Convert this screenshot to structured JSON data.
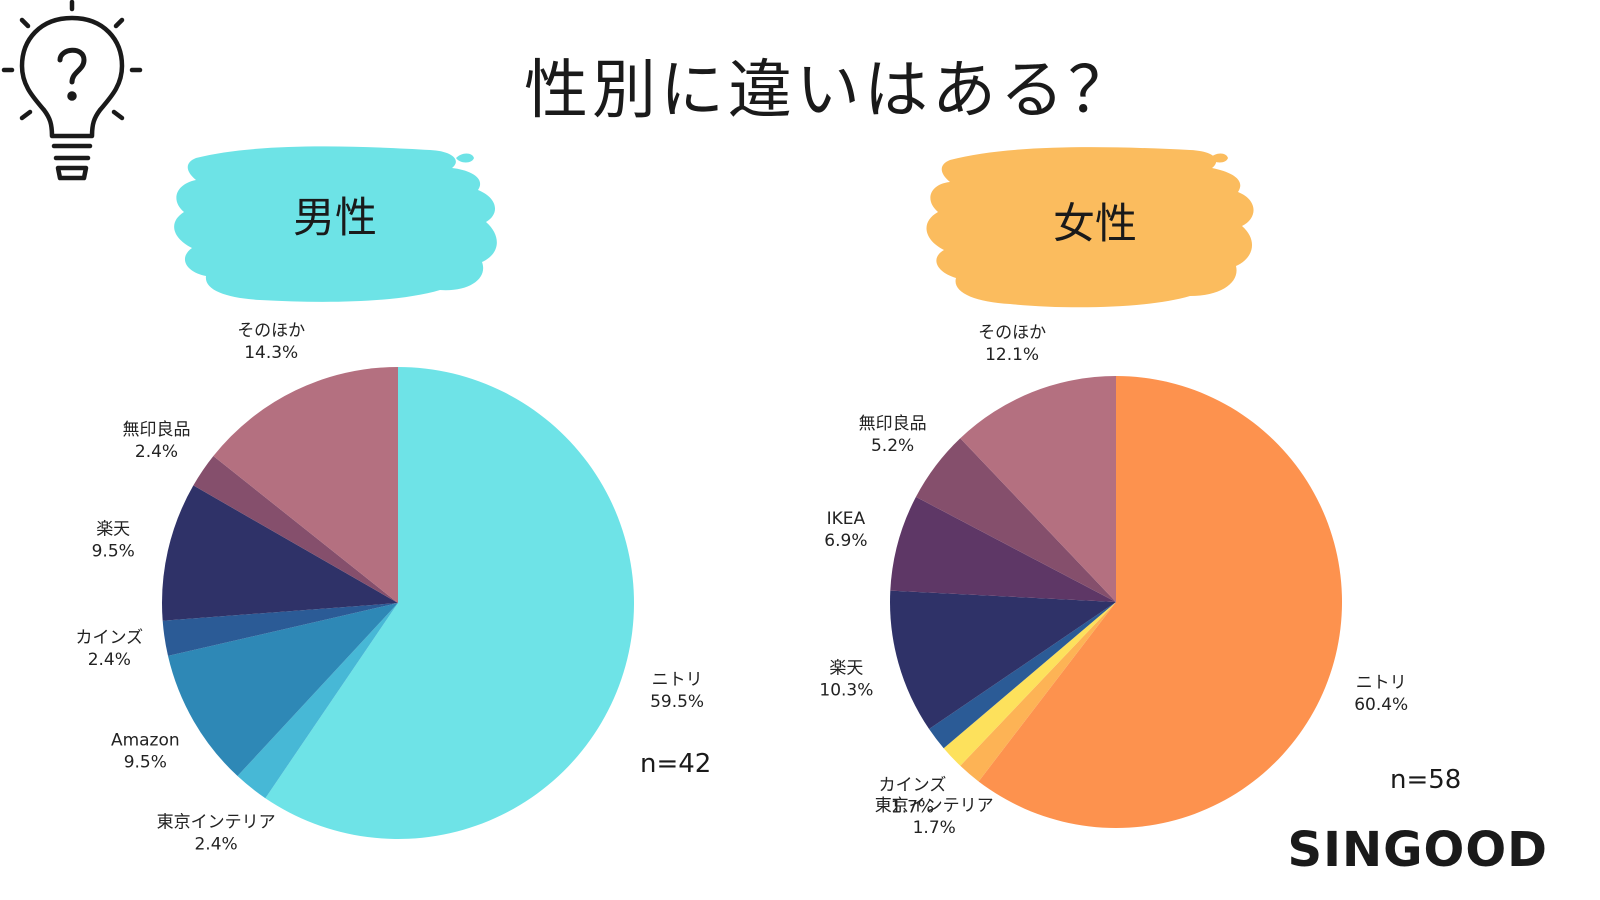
{
  "title": "性別に違いはある？",
  "brand": "SINGOOD",
  "icon": "lightbulb-question-icon",
  "colors": {
    "male_badge": "#6de3e6",
    "female_badge": "#fbbc5e",
    "text": "#1a1a1a"
  },
  "chart_data": [
    {
      "type": "pie",
      "title": "男性",
      "sample_size": "n=42",
      "slices": [
        {
          "label": "ニトリ",
          "value": 59.5,
          "value_text": "59.5%",
          "color": "#6ee3e7"
        },
        {
          "label": "東京インテリア",
          "value": 2.4,
          "value_text": "2.4%",
          "color": "#47b8d6"
        },
        {
          "label": "Amazon",
          "value": 9.5,
          "value_text": "9.5%",
          "color": "#2e88b6"
        },
        {
          "label": "カインズ",
          "value": 2.4,
          "value_text": "2.4%",
          "color": "#2b5b96"
        },
        {
          "label": "楽天",
          "value": 9.5,
          "value_text": "9.5%",
          "color": "#2f3268"
        },
        {
          "label": "無印良品",
          "value": 2.4,
          "value_text": "2.4%",
          "color": "#854f6c"
        },
        {
          "label": "そのほか",
          "value": 14.3,
          "value_text": "14.3%",
          "color": "#b47080"
        }
      ]
    },
    {
      "type": "pie",
      "title": "女性",
      "sample_size": "n=58",
      "slices": [
        {
          "label": "ニトリ",
          "value": 60.4,
          "value_text": "60.4%",
          "color": "#fd924e"
        },
        {
          "label": "東京インテリア",
          "value": 1.7,
          "value_text": "1.7%",
          "color": "#fdb355"
        },
        {
          "label": "カインズ",
          "value": 1.7,
          "value_text": "1.7%",
          "color": "#fde15c"
        },
        {
          "label": "",
          "value": 1.7,
          "value_text": "",
          "color": "#2b5b96"
        },
        {
          "label": "楽天",
          "value": 10.3,
          "value_text": "10.3%",
          "color": "#2f3268"
        },
        {
          "label": "IKEA",
          "value": 6.9,
          "value_text": "6.9%",
          "color": "#5e3766"
        },
        {
          "label": "無印良品",
          "value": 5.2,
          "value_text": "5.2%",
          "color": "#854f6c"
        },
        {
          "label": "そのほか",
          "value": 12.1,
          "value_text": "12.1%",
          "color": "#b47080"
        }
      ]
    }
  ]
}
